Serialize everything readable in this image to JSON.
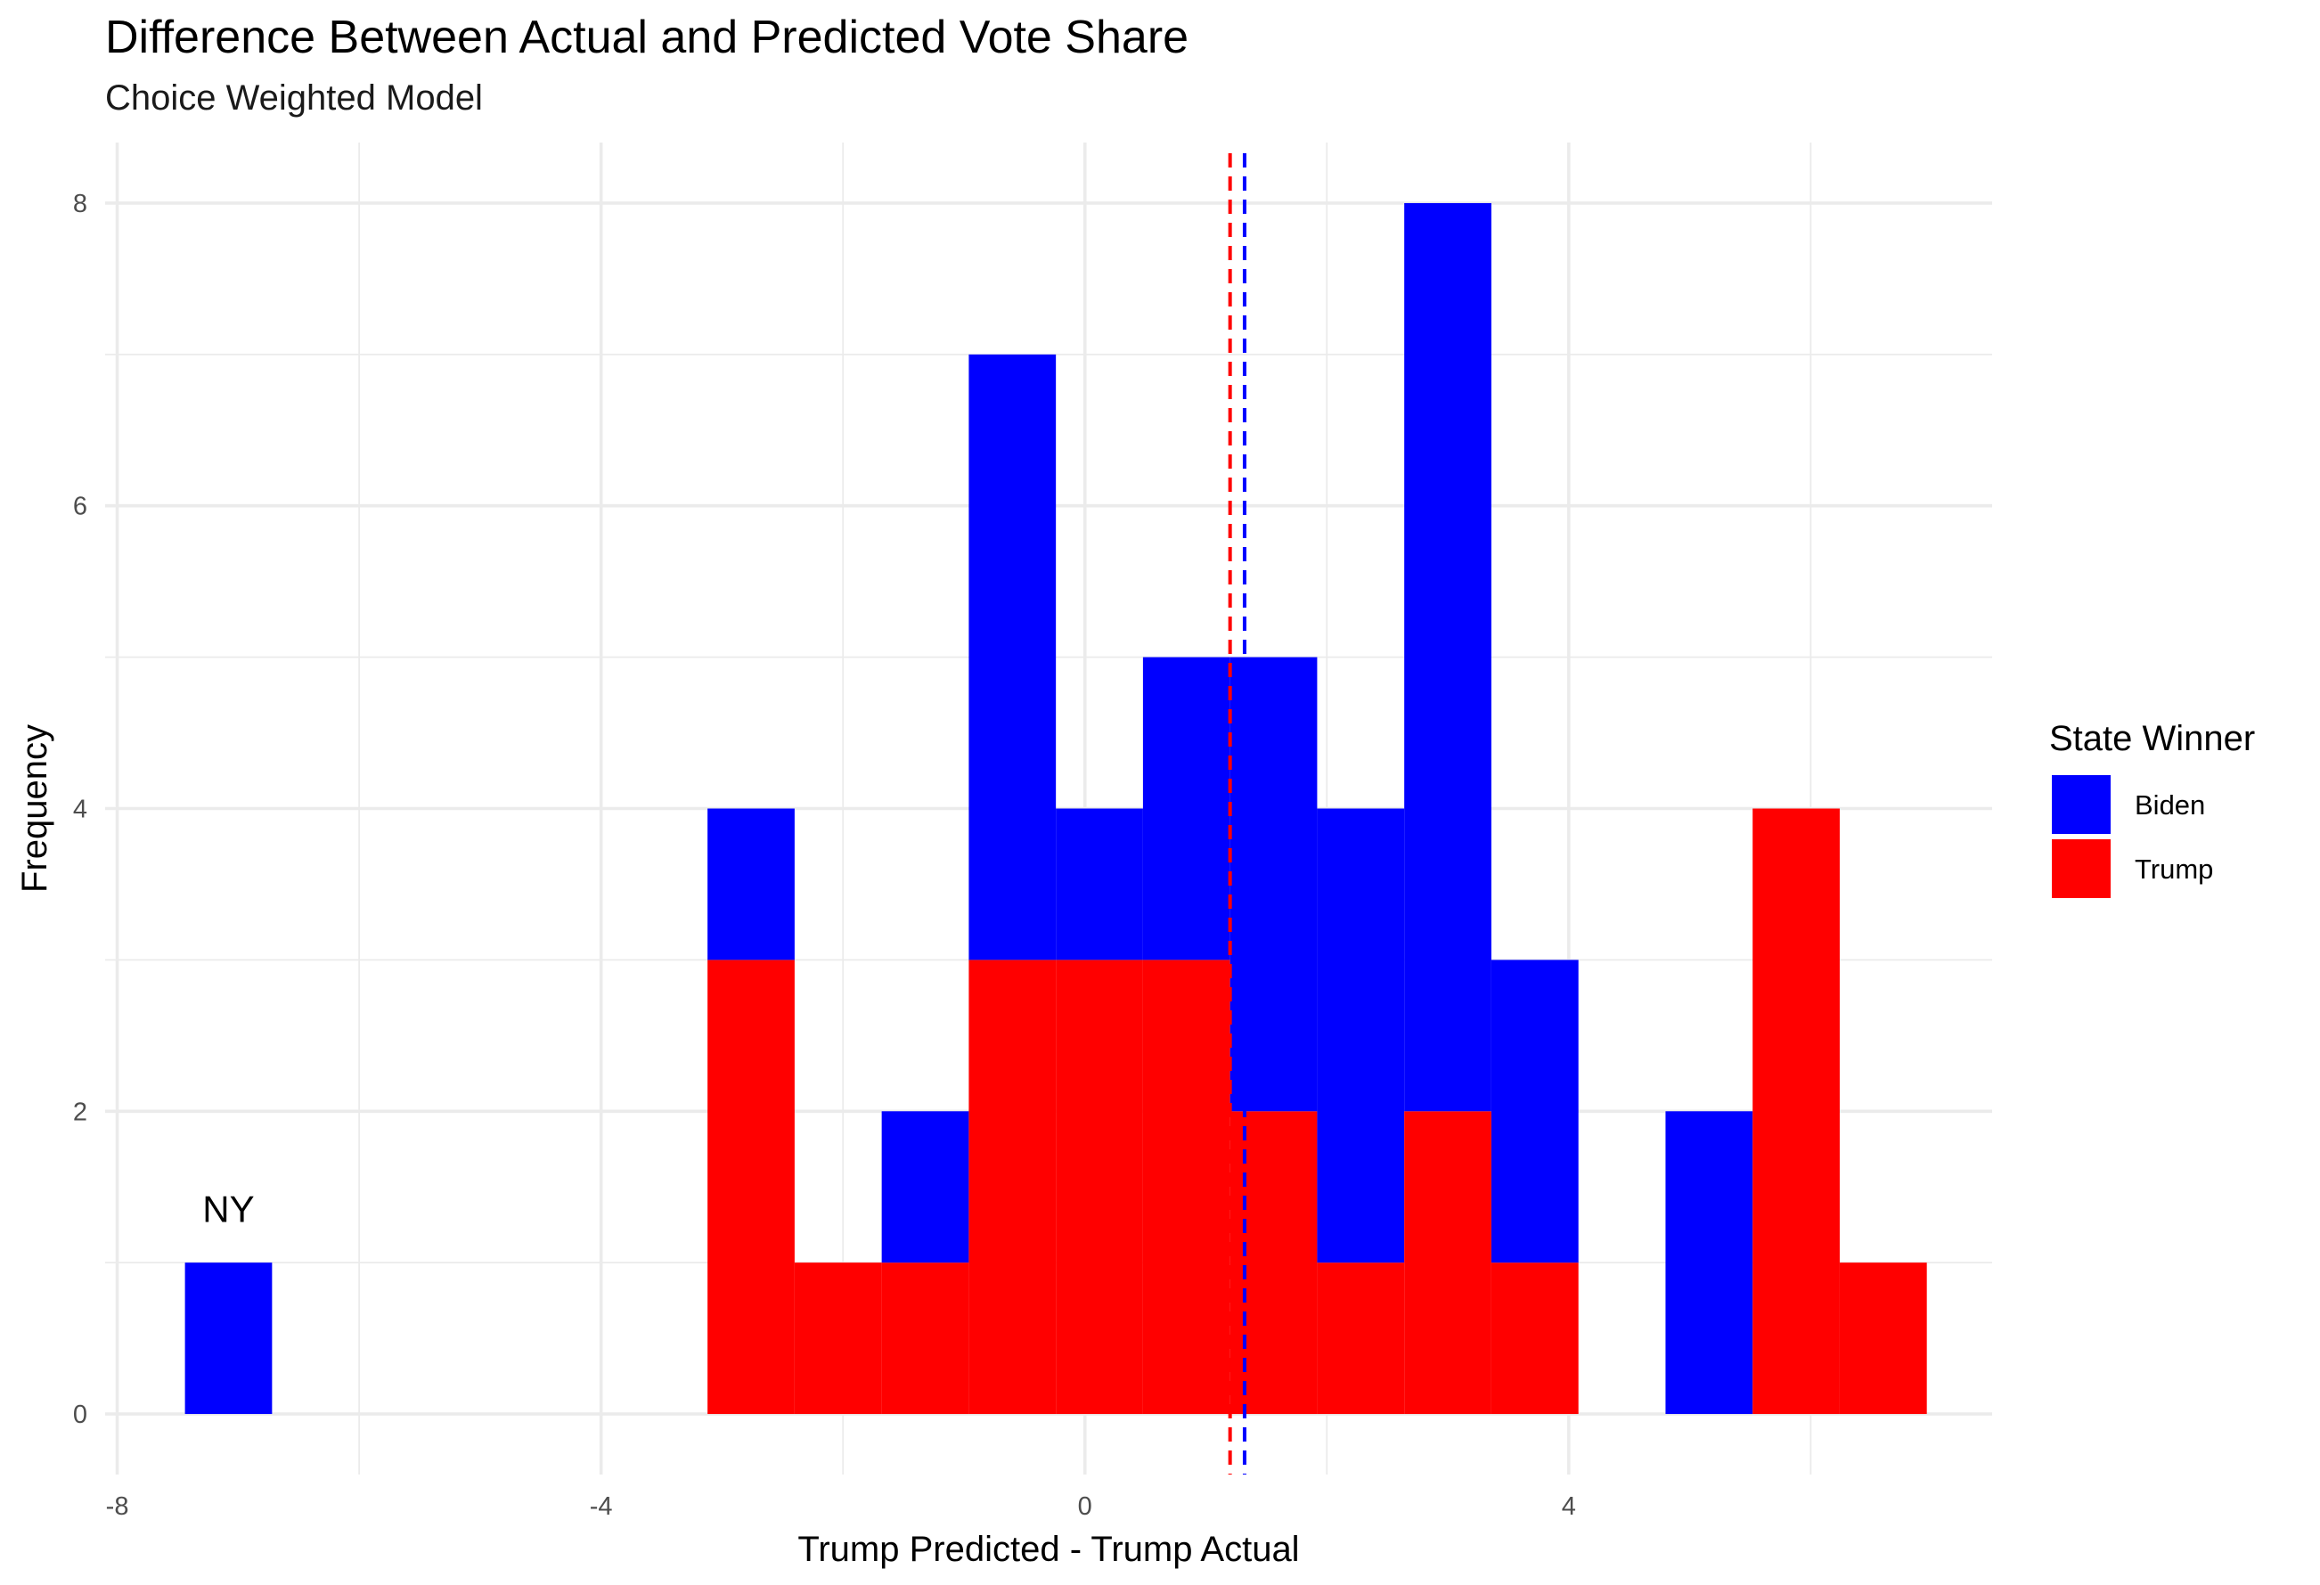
{
  "chart_data": {
    "type": "bar",
    "title": "Difference Between Actual and Predicted Vote Share",
    "subtitle": "Choice Weighted Model",
    "xlabel": "Trump Predicted - Trump Actual",
    "ylabel": "Frequency",
    "xlim": [
      -8.1,
      7.5
    ],
    "ylim": [
      -0.4,
      8.4
    ],
    "x_ticks": [
      -8,
      -4,
      0,
      4
    ],
    "x_tick_labels": [
      "-8",
      "-4",
      "0",
      "4"
    ],
    "y_ticks": [
      0,
      2,
      4,
      6,
      8
    ],
    "y_tick_labels": [
      "0",
      "2",
      "4",
      "6",
      "8"
    ],
    "grid": true,
    "stacked": true,
    "bin_width": 0.72,
    "bin_centers": [
      -7.08,
      -2.76,
      -2.04,
      -1.32,
      -0.6,
      0.12,
      0.84,
      1.56,
      2.28,
      3.0,
      3.72,
      5.16,
      5.88,
      6.6
    ],
    "series": [
      {
        "name": "Biden",
        "color": "#0000FF",
        "values": [
          1,
          1,
          0,
          1,
          4,
          1,
          2,
          3,
          3,
          6,
          2,
          2,
          0,
          0
        ]
      },
      {
        "name": "Trump",
        "color": "#FF0000",
        "values": [
          0,
          3,
          1,
          1,
          3,
          3,
          3,
          2,
          1,
          2,
          1,
          0,
          4,
          1
        ]
      }
    ],
    "reference_lines": [
      {
        "x": 1.2,
        "color": "#FF0000",
        "style": "dashed"
      },
      {
        "x": 1.32,
        "color": "#0000FF",
        "style": "dashed"
      }
    ],
    "annotations": [
      {
        "text": "NY",
        "x": -7.08,
        "y": 1.35
      }
    ],
    "legend": {
      "title": "State Winner",
      "position": "right",
      "entries": [
        {
          "label": "Biden",
          "color": "#0000FF"
        },
        {
          "label": "Trump",
          "color": "#FF0000"
        }
      ]
    }
  }
}
